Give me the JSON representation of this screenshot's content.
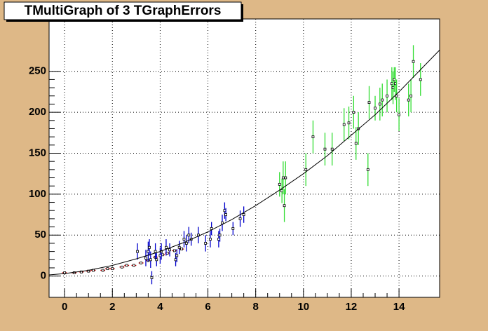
{
  "chart_data": {
    "type": "scatter-errors",
    "title": "TMultiGraph of 3 TGraphErrors",
    "xlim": [
      -0.65,
      15.7
    ],
    "ylim": [
      -26,
      314
    ],
    "xticks": [
      0,
      2,
      4,
      6,
      8,
      10,
      12,
      14
    ],
    "yticks": [
      0,
      50,
      100,
      150,
      200,
      250
    ],
    "grid": true,
    "series": [
      {
        "color": "#cc0000",
        "x": [
          0.0,
          0.4,
          0.7,
          1.0,
          1.2,
          1.6,
          1.8,
          2.0,
          2.4,
          2.6,
          2.9,
          3.2,
          3.5,
          3.8,
          4.1,
          4.3,
          4.6,
          4.9
        ],
        "values": [
          4,
          4,
          5,
          6,
          7,
          7,
          9,
          9,
          11,
          13,
          13,
          16,
          19,
          23,
          26,
          28,
          31,
          33
        ],
        "x_errors": [
          0.1,
          0.1,
          0.1,
          0.1,
          0.1,
          0.1,
          0.1,
          0.1,
          0.1,
          0.1,
          0.1,
          0.1,
          0.1,
          0.1,
          0.1,
          0.1,
          0.1,
          0.1
        ],
        "errors": [
          1.5,
          1.5,
          1.5,
          1.5,
          1.5,
          1.5,
          1.5,
          1.5,
          1.5,
          1.5,
          1.5,
          1.5,
          1.5,
          1.5,
          1.5,
          1.5,
          1.5,
          1.5
        ]
      },
      {
        "color": "#0000cc",
        "x": [
          3.05,
          3.4,
          3.5,
          3.55,
          3.6,
          3.65,
          3.8,
          3.85,
          4.0,
          4.05,
          4.25,
          4.4,
          4.65,
          4.7,
          4.8,
          5.0,
          5.1,
          5.2,
          5.3,
          5.6,
          5.9,
          6.1,
          6.15,
          6.45,
          6.5,
          6.6,
          6.7,
          6.75,
          7.05,
          7.35,
          7.5
        ],
        "values": [
          30,
          22,
          30,
          35,
          20,
          -2,
          30,
          20,
          25,
          30,
          35,
          32,
          20,
          25,
          35,
          45,
          40,
          50,
          45,
          50,
          40,
          45,
          58,
          45,
          50,
          65,
          80,
          75,
          58,
          70,
          75
        ],
        "errors": [
          10,
          10,
          12,
          10,
          10,
          8,
          10,
          8,
          10,
          10,
          10,
          8,
          8,
          8,
          8,
          10,
          10,
          10,
          8,
          10,
          10,
          10,
          8,
          10,
          8,
          10,
          10,
          8,
          8,
          10,
          10
        ]
      },
      {
        "color": "#33dd33",
        "x": [
          9.0,
          9.1,
          9.15,
          9.2,
          9.25,
          10.1,
          10.4,
          10.9,
          11.2,
          11.7,
          11.9,
          12.1,
          12.2,
          12.3,
          12.7,
          12.75,
          13.0,
          13.2,
          13.3,
          13.5,
          13.7,
          13.75,
          13.8,
          13.85,
          13.9,
          14.0,
          14.4,
          14.5,
          14.6,
          14.9
        ],
        "values": [
          112,
          104,
          120,
          86,
          120,
          130,
          170,
          155,
          155,
          185,
          187,
          200,
          162,
          180,
          130,
          212,
          205,
          210,
          215,
          220,
          235,
          230,
          240,
          235,
          220,
          197,
          215,
          220,
          262,
          240
        ],
        "errors": [
          15,
          15,
          20,
          20,
          20,
          20,
          20,
          20,
          20,
          20,
          20,
          20,
          20,
          20,
          20,
          20,
          15,
          20,
          20,
          20,
          20,
          20,
          15,
          20,
          20,
          20,
          20,
          20,
          20,
          20
        ]
      }
    ],
    "fit": {
      "color": "#000000",
      "x": [
        -0.65,
        0,
        1,
        2,
        3,
        4,
        5,
        6,
        7,
        8,
        9,
        10,
        11,
        12,
        13,
        14,
        15,
        15.7
      ],
      "values": [
        1.4,
        3,
        7,
        13,
        21,
        30,
        41,
        54,
        69,
        86,
        105,
        125,
        147,
        172,
        197,
        225,
        255,
        276
      ]
    }
  }
}
